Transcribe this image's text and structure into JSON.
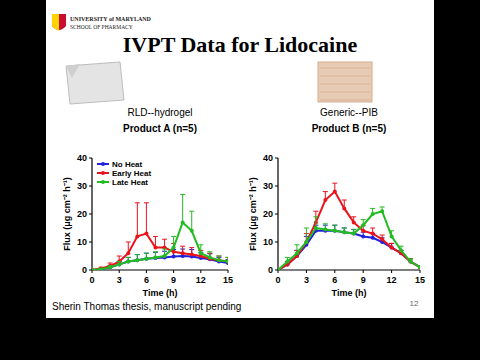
{
  "slide": {
    "title": "IVPT Data for Lidocaine",
    "logo": [
      "UNIVERSITY of MARYLAND",
      "SCHOOL OF PHARMACY"
    ],
    "footnote": "Sherin Thomas thesis, manuscript pending",
    "page": "12"
  },
  "chart_data": [
    {
      "type": "line",
      "subtitle": "RLD--hydrogel",
      "title": "Product A (n=5)",
      "x_label": "Time (h)",
      "y_label": "Flux (μg cm⁻² h⁻¹)",
      "x": [
        0,
        1,
        2,
        3,
        4,
        5,
        6,
        7,
        8,
        9,
        10,
        11,
        12,
        13,
        14,
        15
      ],
      "xlim": [
        0,
        15
      ],
      "xticks": [
        0,
        3,
        6,
        9,
        12,
        15
      ],
      "ylim": [
        0,
        40
      ],
      "yticks": [
        0,
        10,
        20,
        30,
        40
      ],
      "grid": false,
      "legend": "top-left",
      "marker": "circle",
      "series": [
        {
          "name": "No Heat",
          "color": "#2222dd",
          "values": [
            0,
            0.3,
            1,
            2,
            3,
            3.5,
            4,
            4.3,
            4.5,
            4.8,
            5,
            4.8,
            4.3,
            3.8,
            3,
            2.5
          ],
          "errors": [
            0,
            0.2,
            0.5,
            1,
            1.5,
            2,
            2,
            2,
            2.2,
            2.5,
            2.5,
            2.5,
            2,
            2,
            1.5,
            1.2
          ]
        },
        {
          "name": "Early Heat",
          "color": "#e8131b",
          "values": [
            0,
            0.5,
            1.5,
            3,
            6,
            12,
            13,
            8,
            8,
            6.5,
            6,
            5.5,
            5,
            4,
            3.5,
            3
          ],
          "errors": [
            0,
            0.5,
            1,
            2,
            4,
            12,
            11,
            4,
            3,
            3,
            2.5,
            2.5,
            2,
            2,
            1.5,
            1.5
          ]
        },
        {
          "name": "Late Heat",
          "color": "#22bb22",
          "values": [
            0,
            0.3,
            1,
            2,
            3,
            3.5,
            4,
            4.5,
            5,
            8,
            17,
            14,
            6,
            4.5,
            3.5,
            3
          ],
          "errors": [
            0,
            0.2,
            0.5,
            1,
            1.5,
            2,
            2,
            2,
            2.5,
            4,
            10,
            7,
            3,
            2,
            1.5,
            1.5
          ]
        }
      ]
    },
    {
      "type": "line",
      "subtitle": "Generic--PIB",
      "title": "Product B (n=5)",
      "x_label": "Time (h)",
      "y_label": "Flux (μg cm⁻² h⁻¹)",
      "x": [
        0,
        1,
        2,
        3,
        4,
        5,
        6,
        7,
        8,
        9,
        10,
        11,
        12,
        13,
        14,
        15
      ],
      "xlim": [
        0,
        15
      ],
      "xticks": [
        0,
        3,
        6,
        9,
        12,
        15
      ],
      "ylim": [
        0,
        40
      ],
      "yticks": [
        0,
        10,
        20,
        30,
        40
      ],
      "grid": false,
      "marker": "circle",
      "series": [
        {
          "color": "#2222dd",
          "values": [
            0,
            2,
            5,
            9,
            14,
            14,
            14,
            13.5,
            13,
            12,
            11.5,
            10,
            8,
            6,
            3,
            1
          ],
          "errors": [
            0,
            1,
            2,
            3,
            2,
            2,
            2,
            1.5,
            1.5,
            1.5,
            1.5,
            1.5,
            1.5,
            1,
            1,
            0.5
          ]
        },
        {
          "color": "#e8131b",
          "values": [
            0,
            2,
            5,
            10,
            17,
            25,
            28,
            22,
            17,
            14,
            13,
            11,
            8,
            6,
            3,
            1
          ],
          "errors": [
            0,
            1,
            2,
            3,
            4,
            3,
            3,
            3,
            2,
            2,
            2,
            1.5,
            1.5,
            1,
            1,
            0.5
          ]
        },
        {
          "color": "#22bb22",
          "values": [
            0,
            3,
            6,
            10,
            15,
            14.5,
            14,
            13.5,
            13,
            16,
            20,
            21,
            12,
            7,
            3,
            1
          ],
          "errors": [
            0,
            1.5,
            3,
            5,
            4,
            2,
            2,
            1.5,
            1.5,
            2,
            2,
            1.5,
            2,
            1.5,
            1,
            0.5
          ]
        }
      ]
    }
  ]
}
